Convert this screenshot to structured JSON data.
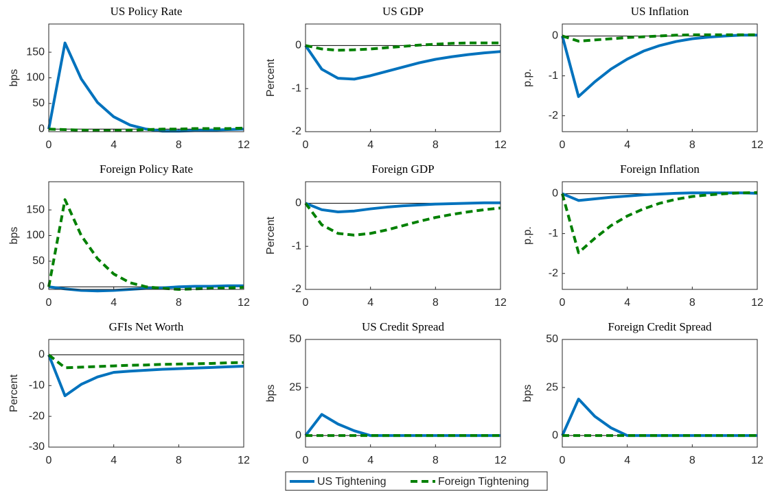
{
  "chart_data": [
    {
      "type": "line",
      "title": "US Policy Rate",
      "ylabel": "bps",
      "x": [
        0,
        1,
        2,
        3,
        4,
        5,
        6,
        7,
        8,
        9,
        10,
        11,
        12
      ],
      "xlim": [
        0,
        12
      ],
      "xticks": [
        0,
        4,
        8,
        12
      ],
      "ylim": [
        -5,
        205
      ],
      "yticks": [
        0,
        50,
        100,
        150
      ],
      "series": [
        {
          "name": "US Tightening",
          "color": "#0072bd",
          "linestyle": "solid",
          "values": [
            0,
            168,
            98,
            52,
            24,
            8,
            0,
            -4,
            -4,
            -3,
            -2,
            -1,
            0
          ]
        },
        {
          "name": "Foreign Tightening",
          "color": "#008000",
          "linestyle": "dashed",
          "values": [
            0,
            -1,
            -2,
            -3,
            -3,
            -2,
            -1,
            0,
            0,
            1,
            1,
            1,
            2
          ]
        }
      ]
    },
    {
      "type": "line",
      "title": "US GDP",
      "ylabel": "Percent",
      "x": [
        0,
        1,
        2,
        3,
        4,
        5,
        6,
        7,
        8,
        9,
        10,
        11,
        12
      ],
      "xlim": [
        0,
        12
      ],
      "xticks": [
        0,
        4,
        8,
        12
      ],
      "ylim": [
        -2,
        0.5
      ],
      "yticks": [
        -2,
        -1,
        0
      ],
      "series": [
        {
          "color": "#0072bd",
          "linestyle": "solid",
          "values": [
            0,
            -0.55,
            -0.76,
            -0.78,
            -0.7,
            -0.6,
            -0.5,
            -0.4,
            -0.32,
            -0.26,
            -0.21,
            -0.17,
            -0.14
          ]
        },
        {
          "color": "#008000",
          "linestyle": "dashed",
          "values": [
            0,
            -0.08,
            -0.11,
            -0.1,
            -0.08,
            -0.05,
            -0.02,
            0.01,
            0.03,
            0.05,
            0.06,
            0.06,
            0.06
          ]
        }
      ]
    },
    {
      "type": "line",
      "title": "US Inflation",
      "ylabel": "p.p.",
      "x": [
        0,
        1,
        2,
        3,
        4,
        5,
        6,
        7,
        8,
        9,
        10,
        11,
        12
      ],
      "xlim": [
        0,
        12
      ],
      "xticks": [
        0,
        4,
        8,
        12
      ],
      "ylim": [
        -2.4,
        0.3
      ],
      "yticks": [
        -2,
        -1,
        0
      ],
      "series": [
        {
          "color": "#0072bd",
          "linestyle": "solid",
          "values": [
            0,
            -1.52,
            -1.15,
            -0.83,
            -0.58,
            -0.38,
            -0.24,
            -0.14,
            -0.07,
            -0.03,
            0,
            0.02,
            0.02
          ]
        },
        {
          "color": "#008000",
          "linestyle": "dashed",
          "values": [
            0,
            -0.13,
            -0.1,
            -0.07,
            -0.04,
            -0.02,
            0,
            0.02,
            0.03,
            0.03,
            0.03,
            0.03,
            0.03
          ]
        }
      ]
    },
    {
      "type": "line",
      "title": "Foreign Policy Rate",
      "ylabel": "bps",
      "x": [
        0,
        1,
        2,
        3,
        4,
        5,
        6,
        7,
        8,
        9,
        10,
        11,
        12
      ],
      "xlim": [
        0,
        12
      ],
      "xticks": [
        0,
        4,
        8,
        12
      ],
      "ylim": [
        -5,
        205
      ],
      "yticks": [
        0,
        50,
        100,
        150
      ],
      "series": [
        {
          "color": "#0072bd",
          "linestyle": "solid",
          "values": [
            0,
            -4,
            -7,
            -8,
            -7,
            -5,
            -3,
            -2,
            0,
            1,
            1,
            2,
            2
          ]
        },
        {
          "color": "#008000",
          "linestyle": "dashed",
          "values": [
            0,
            170,
            100,
            55,
            25,
            8,
            0,
            -3,
            -5,
            -4,
            -3,
            -2,
            -1
          ]
        }
      ]
    },
    {
      "type": "line",
      "title": "Foreign GDP",
      "ylabel": "Percent",
      "x": [
        0,
        1,
        2,
        3,
        4,
        5,
        6,
        7,
        8,
        9,
        10,
        11,
        12
      ],
      "xlim": [
        0,
        12
      ],
      "xticks": [
        0,
        4,
        8,
        12
      ],
      "ylim": [
        -2,
        0.5
      ],
      "yticks": [
        -2,
        -1,
        0
      ],
      "series": [
        {
          "color": "#0072bd",
          "linestyle": "solid",
          "values": [
            0,
            -0.15,
            -0.2,
            -0.18,
            -0.13,
            -0.09,
            -0.06,
            -0.04,
            -0.02,
            -0.01,
            0,
            0.01,
            0.01
          ]
        },
        {
          "color": "#008000",
          "linestyle": "dashed",
          "values": [
            0,
            -0.5,
            -0.7,
            -0.74,
            -0.7,
            -0.62,
            -0.52,
            -0.42,
            -0.33,
            -0.26,
            -0.2,
            -0.15,
            -0.11
          ]
        }
      ]
    },
    {
      "type": "line",
      "title": "Foreign Inflation",
      "ylabel": "p.p.",
      "x": [
        0,
        1,
        2,
        3,
        4,
        5,
        6,
        7,
        8,
        9,
        10,
        11,
        12
      ],
      "xlim": [
        0,
        12
      ],
      "xticks": [
        0,
        4,
        8,
        12
      ],
      "ylim": [
        -2.4,
        0.3
      ],
      "yticks": [
        -2,
        -1,
        0
      ],
      "series": [
        {
          "color": "#0072bd",
          "linestyle": "solid",
          "values": [
            0,
            -0.17,
            -0.13,
            -0.09,
            -0.06,
            -0.03,
            -0.01,
            0.01,
            0.02,
            0.02,
            0.02,
            0.02,
            0.01
          ]
        },
        {
          "color": "#008000",
          "linestyle": "dashed",
          "values": [
            0,
            -1.48,
            -1.12,
            -0.8,
            -0.56,
            -0.38,
            -0.24,
            -0.14,
            -0.07,
            -0.03,
            0,
            0.02,
            0.03
          ]
        }
      ]
    },
    {
      "type": "line",
      "title": "GFIs Net Worth",
      "ylabel": "Percent",
      "x": [
        0,
        1,
        2,
        3,
        4,
        5,
        6,
        7,
        8,
        9,
        10,
        11,
        12
      ],
      "xlim": [
        0,
        12
      ],
      "xticks": [
        0,
        4,
        8,
        12
      ],
      "ylim": [
        -30,
        5
      ],
      "yticks": [
        -30,
        -20,
        -10,
        0
      ],
      "series": [
        {
          "color": "#0072bd",
          "linestyle": "solid",
          "values": [
            0,
            -13.3,
            -9.6,
            -7.2,
            -5.7,
            -5.3,
            -5,
            -4.7,
            -4.5,
            -4.3,
            -4.1,
            -3.9,
            -3.7
          ]
        },
        {
          "color": "#008000",
          "linestyle": "dashed",
          "values": [
            0,
            -4.2,
            -4,
            -3.8,
            -3.6,
            -3.4,
            -3.3,
            -3.1,
            -3,
            -2.9,
            -2.8,
            -2.6,
            -2.5
          ]
        }
      ]
    },
    {
      "type": "line",
      "title": "US Credit Spread",
      "ylabel": "bps",
      "x": [
        0,
        1,
        2,
        3,
        4,
        5,
        6,
        7,
        8,
        9,
        10,
        11,
        12
      ],
      "xlim": [
        0,
        12
      ],
      "xticks": [
        0,
        4,
        8,
        12
      ],
      "ylim": [
        -6,
        50
      ],
      "yticks": [
        0,
        25,
        50
      ],
      "series": [
        {
          "color": "#0072bd",
          "linestyle": "solid",
          "values": [
            0,
            11,
            6,
            2.5,
            0,
            0,
            0,
            0,
            0,
            0,
            0,
            0,
            0
          ]
        },
        {
          "color": "#008000",
          "linestyle": "dashed",
          "values": [
            0,
            0,
            0,
            0,
            0,
            0,
            0,
            0,
            0,
            0,
            0,
            0,
            0
          ]
        }
      ]
    },
    {
      "type": "line",
      "title": "Foreign Credit Spread",
      "ylabel": "bps",
      "x": [
        0,
        1,
        2,
        3,
        4,
        5,
        6,
        7,
        8,
        9,
        10,
        11,
        12
      ],
      "xlim": [
        0,
        12
      ],
      "xticks": [
        0,
        4,
        8,
        12
      ],
      "ylim": [
        -6,
        50
      ],
      "yticks": [
        0,
        25,
        50
      ],
      "series": [
        {
          "color": "#0072bd",
          "linestyle": "solid",
          "values": [
            0,
            19,
            10,
            4,
            0,
            0,
            0,
            0,
            0,
            0,
            0,
            0,
            0
          ]
        },
        {
          "color": "#008000",
          "linestyle": "dashed",
          "values": [
            0,
            0,
            0,
            0,
            0,
            0,
            0,
            0,
            0,
            0,
            0,
            0,
            0
          ]
        }
      ]
    }
  ]
}
